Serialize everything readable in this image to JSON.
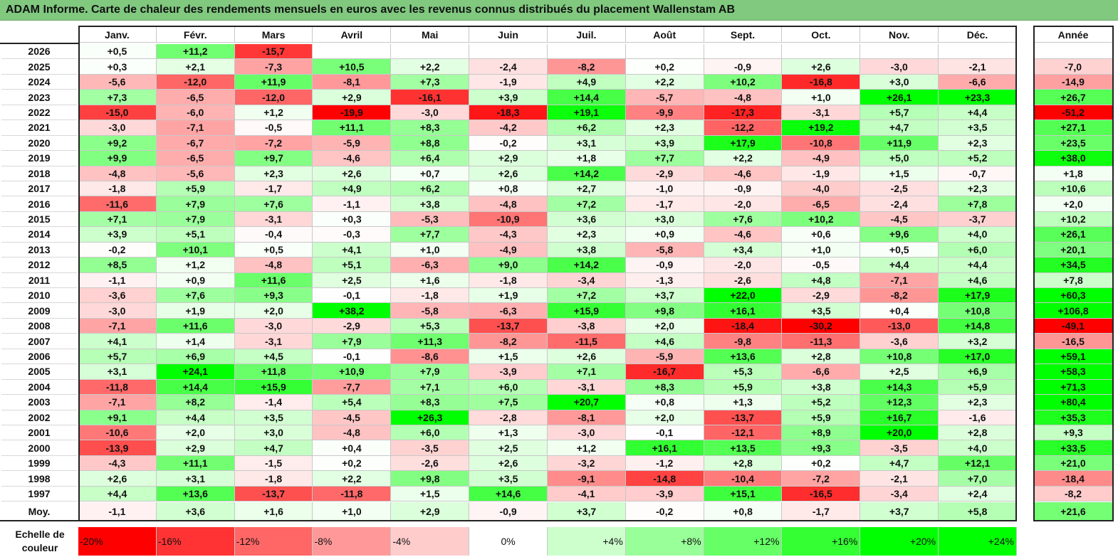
{
  "title": "ADAM Informe. Carte de chaleur des rendements mensuels en euros avec les revenus connus distribués du placement Wallenstam AB",
  "chart_data": {
    "type": "heatmap",
    "months": [
      "Janv.",
      "Févr.",
      "Mars",
      "Avril",
      "Mai",
      "Juin",
      "Juil.",
      "Août",
      "Sept.",
      "Oct.",
      "Nov.",
      "Déc."
    ],
    "year_column_label": "Année",
    "rows": [
      {
        "year": "2026",
        "values": [
          "+0,5",
          "+11,2",
          "-15,7",
          "",
          "",
          "",
          "",
          "",
          "",
          "",
          "",
          ""
        ],
        "annual": ""
      },
      {
        "year": "2025",
        "values": [
          "+0,3",
          "+2,1",
          "-7,3",
          "+10,5",
          "+2,2",
          "-2,4",
          "-8,2",
          "+0,2",
          "-0,9",
          "+2,6",
          "-3,0",
          "-2,1"
        ],
        "annual": "-7,0"
      },
      {
        "year": "2024",
        "values": [
          "-5,6",
          "-12,0",
          "+11,9",
          "-8,1",
          "+7,3",
          "-1,9",
          "+4,9",
          "+2,2",
          "+10,2",
          "-16,8",
          "+3,0",
          "-6,6"
        ],
        "annual": "-14,9"
      },
      {
        "year": "2023",
        "values": [
          "+7,3",
          "-6,5",
          "-12,0",
          "+2,9",
          "-16,1",
          "+3,9",
          "+14,4",
          "-5,7",
          "-4,8",
          "+1,0",
          "+26,1",
          "+23,3"
        ],
        "annual": "+26,7"
      },
      {
        "year": "2022",
        "values": [
          "-15,0",
          "-6,0",
          "+1,2",
          "-19,9",
          "-3,0",
          "-18,3",
          "+19,1",
          "-9,9",
          "-17,3",
          "-3,1",
          "+5,7",
          "+4,4"
        ],
        "annual": "-51,2"
      },
      {
        "year": "2021",
        "values": [
          "-3,0",
          "-7,1",
          "-0,5",
          "+11,1",
          "+8,3",
          "-4,2",
          "+6,2",
          "+2,3",
          "-12,2",
          "+19,2",
          "+4,7",
          "+3,5"
        ],
        "annual": "+27,1"
      },
      {
        "year": "2020",
        "values": [
          "+9,2",
          "-6,7",
          "-7,2",
          "-5,9",
          "+8,8",
          "-0,2",
          "+3,1",
          "+3,9",
          "+17,9",
          "-10,8",
          "+11,9",
          "+2,3"
        ],
        "annual": "+23,5"
      },
      {
        "year": "2019",
        "values": [
          "+9,9",
          "-6,5",
          "+9,7",
          "-4,6",
          "+6,4",
          "+2,9",
          "+1,8",
          "+7,7",
          "+2,2",
          "-4,9",
          "+5,0",
          "+5,2"
        ],
        "annual": "+38,0"
      },
      {
        "year": "2018",
        "values": [
          "-4,8",
          "-5,6",
          "+2,3",
          "+2,6",
          "+0,7",
          "+2,6",
          "+14,2",
          "-2,9",
          "-4,6",
          "-1,9",
          "+1,5",
          "-0,7"
        ],
        "annual": "+1,8"
      },
      {
        "year": "2017",
        "values": [
          "-1,8",
          "+5,9",
          "-1,7",
          "+4,9",
          "+6,2",
          "+0,8",
          "+2,7",
          "-1,0",
          "-0,9",
          "-4,0",
          "-2,5",
          "+2,3"
        ],
        "annual": "+10,6"
      },
      {
        "year": "2016",
        "values": [
          "-11,6",
          "+7,9",
          "+7,6",
          "-1,1",
          "+3,8",
          "-4,8",
          "+7,2",
          "-1,7",
          "-2,0",
          "-6,5",
          "-2,4",
          "+7,8"
        ],
        "annual": "+2,0"
      },
      {
        "year": "2015",
        "values": [
          "+7,1",
          "+7,9",
          "-3,1",
          "+0,3",
          "-5,3",
          "-10,9",
          "+3,6",
          "+3,0",
          "+7,6",
          "+10,2",
          "-4,5",
          "-3,7"
        ],
        "annual": "+10,2"
      },
      {
        "year": "2014",
        "values": [
          "+3,9",
          "+5,1",
          "-0,4",
          "-0,3",
          "+7,7",
          "-4,3",
          "+2,3",
          "+0,9",
          "-4,6",
          "+0,6",
          "+9,6",
          "+4,0"
        ],
        "annual": "+26,1"
      },
      {
        "year": "2013",
        "values": [
          "-0,2",
          "+10,1",
          "+0,5",
          "+4,1",
          "+1,0",
          "-4,9",
          "+3,8",
          "-5,8",
          "+3,4",
          "+1,0",
          "+0,5",
          "+6,0"
        ],
        "annual": "+20,1"
      },
      {
        "year": "2012",
        "values": [
          "+8,5",
          "+1,2",
          "-4,8",
          "+5,1",
          "-6,3",
          "+9,0",
          "+14,2",
          "-0,9",
          "-2,0",
          "-0,5",
          "+4,4",
          "+4,4"
        ],
        "annual": "+34,5"
      },
      {
        "year": "2011",
        "values": [
          "-1,1",
          "+0,9",
          "+11,6",
          "+2,5",
          "+1,6",
          "-1,8",
          "-3,4",
          "-1,3",
          "-2,6",
          "+4,8",
          "-7,1",
          "+4,6"
        ],
        "annual": "+7,8"
      },
      {
        "year": "2010",
        "values": [
          "-3,6",
          "+7,6",
          "+9,3",
          "-0,1",
          "-1,8",
          "+1,9",
          "+7,2",
          "+3,7",
          "+22,0",
          "-2,9",
          "-8,2",
          "+17,9"
        ],
        "annual": "+60,3"
      },
      {
        "year": "2009",
        "values": [
          "-3,0",
          "+1,9",
          "+2,0",
          "+38,2",
          "-5,8",
          "-6,3",
          "+15,9",
          "+9,8",
          "+16,1",
          "+3,5",
          "+0,4",
          "+10,8"
        ],
        "annual": "+106,8"
      },
      {
        "year": "2008",
        "values": [
          "-7,1",
          "+11,6",
          "-3,0",
          "-2,9",
          "+5,3",
          "-13,7",
          "-3,8",
          "+2,0",
          "-18,4",
          "-30,2",
          "-13,0",
          "+14,8"
        ],
        "annual": "-49,1"
      },
      {
        "year": "2007",
        "values": [
          "+4,1",
          "+1,4",
          "-3,1",
          "+7,9",
          "+11,3",
          "-8,2",
          "-11,5",
          "+4,6",
          "-9,8",
          "-11,3",
          "-3,6",
          "+3,2"
        ],
        "annual": "-16,5"
      },
      {
        "year": "2006",
        "values": [
          "+5,7",
          "+6,9",
          "+4,5",
          "-0,1",
          "-8,6",
          "+1,5",
          "+2,6",
          "-5,9",
          "+13,6",
          "+2,8",
          "+10,8",
          "+17,0"
        ],
        "annual": "+59,1"
      },
      {
        "year": "2005",
        "values": [
          "+3,1",
          "+24,1",
          "+11,8",
          "+10,9",
          "+7,9",
          "-3,9",
          "+7,1",
          "-16,7",
          "+5,3",
          "-6,6",
          "+2,5",
          "+6,9"
        ],
        "annual": "+58,3"
      },
      {
        "year": "2004",
        "values": [
          "-11,8",
          "+14,4",
          "+15,9",
          "-7,7",
          "+7,1",
          "+6,0",
          "-3,1",
          "+8,3",
          "+5,9",
          "+3,8",
          "+14,3",
          "+5,9"
        ],
        "annual": "+71,3"
      },
      {
        "year": "2003",
        "values": [
          "-7,1",
          "+8,2",
          "-1,4",
          "+5,4",
          "+8,3",
          "+7,5",
          "+20,7",
          "+0,8",
          "+1,3",
          "+5,2",
          "+12,3",
          "+2,3"
        ],
        "annual": "+80,4"
      },
      {
        "year": "2002",
        "values": [
          "+9,1",
          "+4,4",
          "+3,5",
          "-4,5",
          "+26,3",
          "-2,8",
          "-8,1",
          "+2,0",
          "-13,7",
          "+5,9",
          "+16,7",
          "-1,6"
        ],
        "annual": "+35,3"
      },
      {
        "year": "2001",
        "values": [
          "-10,6",
          "+2,0",
          "+3,0",
          "-4,8",
          "+6,0",
          "+1,3",
          "-3,0",
          "-0,1",
          "-12,1",
          "+8,9",
          "+20,0",
          "+2,8"
        ],
        "annual": "+9,3"
      },
      {
        "year": "2000",
        "values": [
          "-13,9",
          "+2,9",
          "+4,7",
          "+0,4",
          "-3,5",
          "+2,5",
          "+1,2",
          "+16,1",
          "+13,5",
          "+9,3",
          "-3,5",
          "+4,0"
        ],
        "annual": "+33,5"
      },
      {
        "year": "1999",
        "values": [
          "-4,3",
          "+11,1",
          "-1,5",
          "+0,2",
          "-2,6",
          "+2,6",
          "-3,2",
          "-1,2",
          "+2,8",
          "+0,2",
          "+4,7",
          "+12,1"
        ],
        "annual": "+21,0"
      },
      {
        "year": "1998",
        "values": [
          "+2,6",
          "+3,1",
          "-1,8",
          "+2,2",
          "+9,8",
          "+3,5",
          "-9,1",
          "-14,8",
          "-10,4",
          "-7,2",
          "-2,1",
          "+7,0"
        ],
        "annual": "-18,4"
      },
      {
        "year": "1997",
        "values": [
          "+4,4",
          "+13,6",
          "-13,7",
          "-11,8",
          "+1,5",
          "+14,6",
          "-4,1",
          "-3,9",
          "+15,1",
          "-16,5",
          "-3,4",
          "+2,4"
        ],
        "annual": "-8,2"
      }
    ],
    "average": {
      "label": "Moy.",
      "values": [
        "-1,1",
        "+3,6",
        "+1,6",
        "+1,0",
        "+2,9",
        "-0,9",
        "+3,7",
        "-0,2",
        "+0,8",
        "-1,7",
        "+3,7",
        "+5,8"
      ],
      "annual": "+21,6"
    },
    "scale": {
      "label": "Echelle de couleur",
      "steps": [
        "-20%",
        "-16%",
        "-12%",
        "-8%",
        "-4%",
        "0%",
        "+4%",
        "+8%",
        "+12%",
        "+16%",
        "+20%",
        "+24%"
      ]
    },
    "colors": {
      "negative_max": "#ff0000",
      "neutral": "#ffffff",
      "positive_max": "#00ff00",
      "title_bar": "#80c97f"
    }
  }
}
